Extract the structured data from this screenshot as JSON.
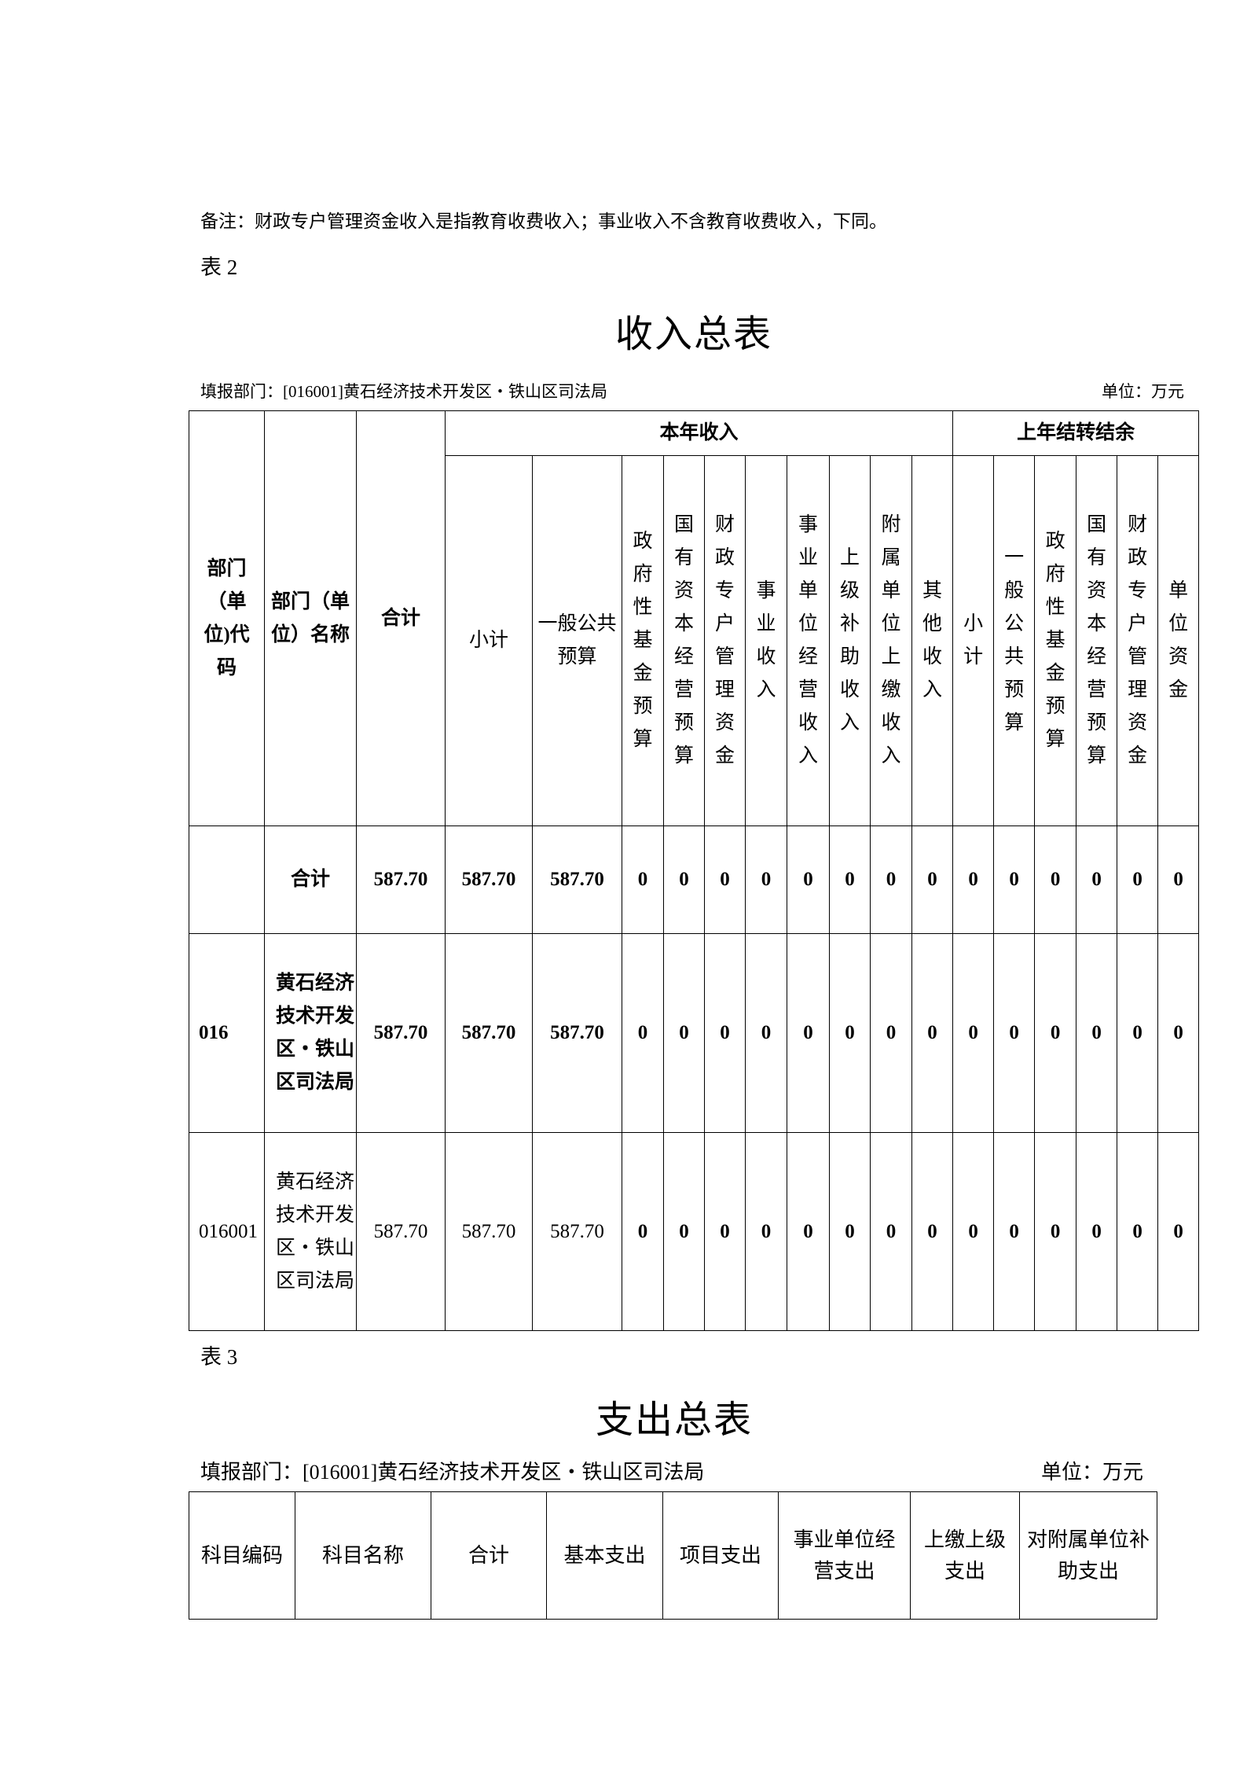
{
  "note": "备注：财政专户管理资金收入是指教育收费收入；事业收入不含教育收费收入，下同。",
  "table2": {
    "label": "表 2",
    "title": "收入总表",
    "dept": "填报部门：[016001]黄石经济技术开发区・铁山区司法局",
    "unit": "单位：万元",
    "group_current": "本年收入",
    "group_prev": "上年结转结余",
    "headers": [
      "部门（单位)代码",
      "部门（单位）名称",
      "合计",
      "小计",
      "一般公共预算",
      "政府性基金预算",
      "国有资本经营预算",
      "财政专户管理资金",
      "事业收入",
      "事业单位经营收入",
      "上级补助收入",
      "附属单位上缴收入",
      "其他收入",
      "小计",
      "一般公共预算",
      "政府性基金预算",
      "国有资本经营预算",
      "财政专户管理资金",
      "单位资金"
    ],
    "rows": [
      {
        "code": "",
        "name": "合计",
        "total": "587.70",
        "subtotal": "587.70",
        "general": "587.70",
        "zeros": [
          "0",
          "0",
          "0",
          "0",
          "0",
          "0",
          "0",
          "0",
          "0",
          "0",
          "0",
          "0",
          "0",
          "0"
        ]
      },
      {
        "code": "016",
        "name": "黄石经济技术开发区・铁山区司法局",
        "total": "587.70",
        "subtotal": "587.70",
        "general": "587.70",
        "zeros": [
          "0",
          "0",
          "0",
          "0",
          "0",
          "0",
          "0",
          "0",
          "0",
          "0",
          "0",
          "0",
          "0",
          "0"
        ]
      },
      {
        "code": "016001",
        "name": "黄石经济技术开发区・铁山区司法局",
        "total": "587.70",
        "subtotal": "587.70",
        "general": "587.70",
        "zeros": [
          "0",
          "0",
          "0",
          "0",
          "0",
          "0",
          "0",
          "0",
          "0",
          "0",
          "0",
          "0",
          "0",
          "0"
        ]
      }
    ]
  },
  "table3": {
    "label": "表 3",
    "title": "支出总表",
    "dept": "填报部门：[016001]黄石经济技术开发区・铁山区司法局",
    "unit": "单位：万元",
    "headers": [
      "科目编码",
      "科目名称",
      "合计",
      "基本支出",
      "项目支出",
      "事业单位经营支出",
      "上缴上级支出",
      "对附属单位补助支出"
    ]
  }
}
